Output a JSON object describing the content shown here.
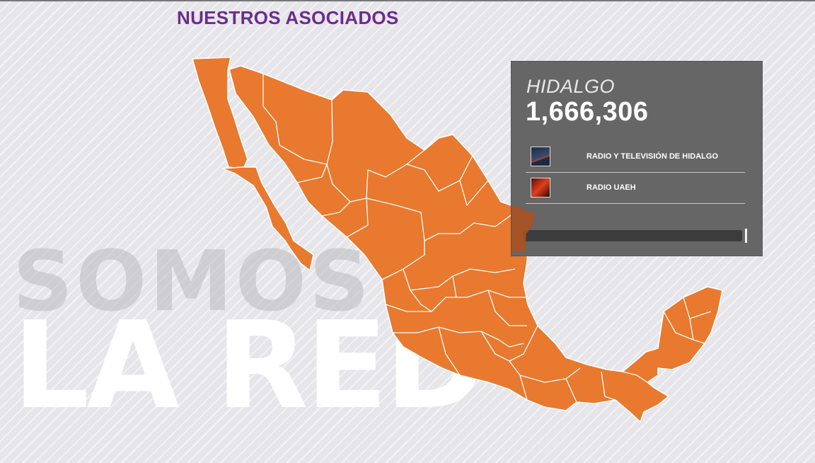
{
  "header": {
    "title": "NUESTROS ASOCIADOS"
  },
  "slogan": {
    "line1": "SOMOS",
    "line2": "LA RED"
  },
  "map": {
    "fill_color": "#e8792e",
    "border_color": "#ffffff"
  },
  "info_panel": {
    "state": "HIDALGO",
    "count": "1,666,306",
    "associates": [
      {
        "name": "RADIO Y TELEVISIÓN DE HIDALGO",
        "logo": "rtv-hidalgo-logo-icon"
      },
      {
        "name": "RADIO UAEH",
        "logo": "radio-uaeh-logo-icon"
      }
    ],
    "scroll_position": 1.0
  },
  "colors": {
    "title": "#6b2c8e",
    "panel_bg": "#666666",
    "background": "#e6e5ea"
  }
}
